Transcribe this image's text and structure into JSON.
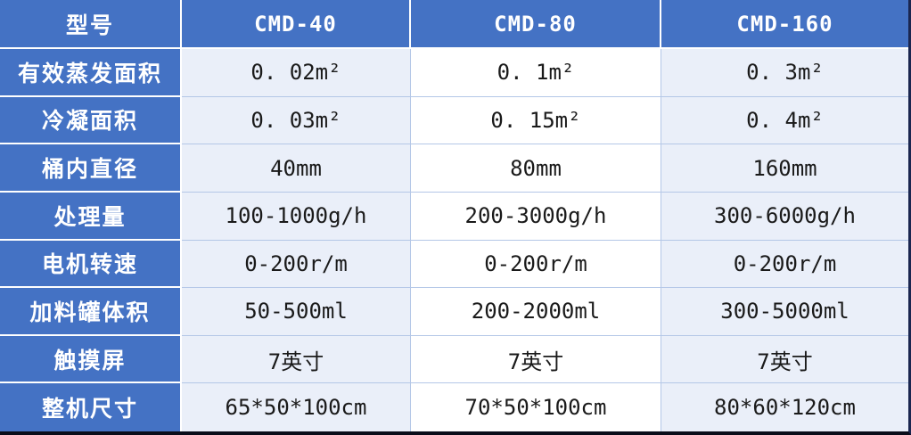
{
  "colors": {
    "header_blue": "#4472C4",
    "tint_cell": "#EAEFF9",
    "white_cell": "#FFFFFF",
    "grid_line": "#B4C7E7",
    "edge_right": "#1A2650",
    "edge_bottom": "#0A0D1A"
  },
  "table": {
    "header": {
      "corner_label": "型号",
      "models": [
        "CMD-40",
        "CMD-80",
        "CMD-160"
      ]
    },
    "rows": [
      {
        "label": "有效蒸发面积",
        "values": [
          "0. 02m²",
          "0. 1m²",
          "0. 3m²"
        ]
      },
      {
        "label": "冷凝面积",
        "values": [
          "0. 03m²",
          "0. 15m²",
          "0. 4m²"
        ]
      },
      {
        "label": "桶内直径",
        "values": [
          "40mm",
          "80mm",
          "160mm"
        ]
      },
      {
        "label": "处理量",
        "values": [
          "100-1000g/h",
          "200-3000g/h",
          "300-6000g/h"
        ]
      },
      {
        "label": "电机转速",
        "values": [
          "0-200r/m",
          "0-200r/m",
          "0-200r/m"
        ]
      },
      {
        "label": "加料罐体积",
        "values": [
          "50-500ml",
          "200-2000ml",
          "300-5000ml"
        ]
      },
      {
        "label": "触摸屏",
        "values": [
          "7英寸",
          "7英寸",
          "7英寸"
        ]
      },
      {
        "label": "整机尺寸",
        "values": [
          "65*50*100cm",
          "70*50*100cm",
          "80*60*120cm"
        ]
      }
    ]
  }
}
